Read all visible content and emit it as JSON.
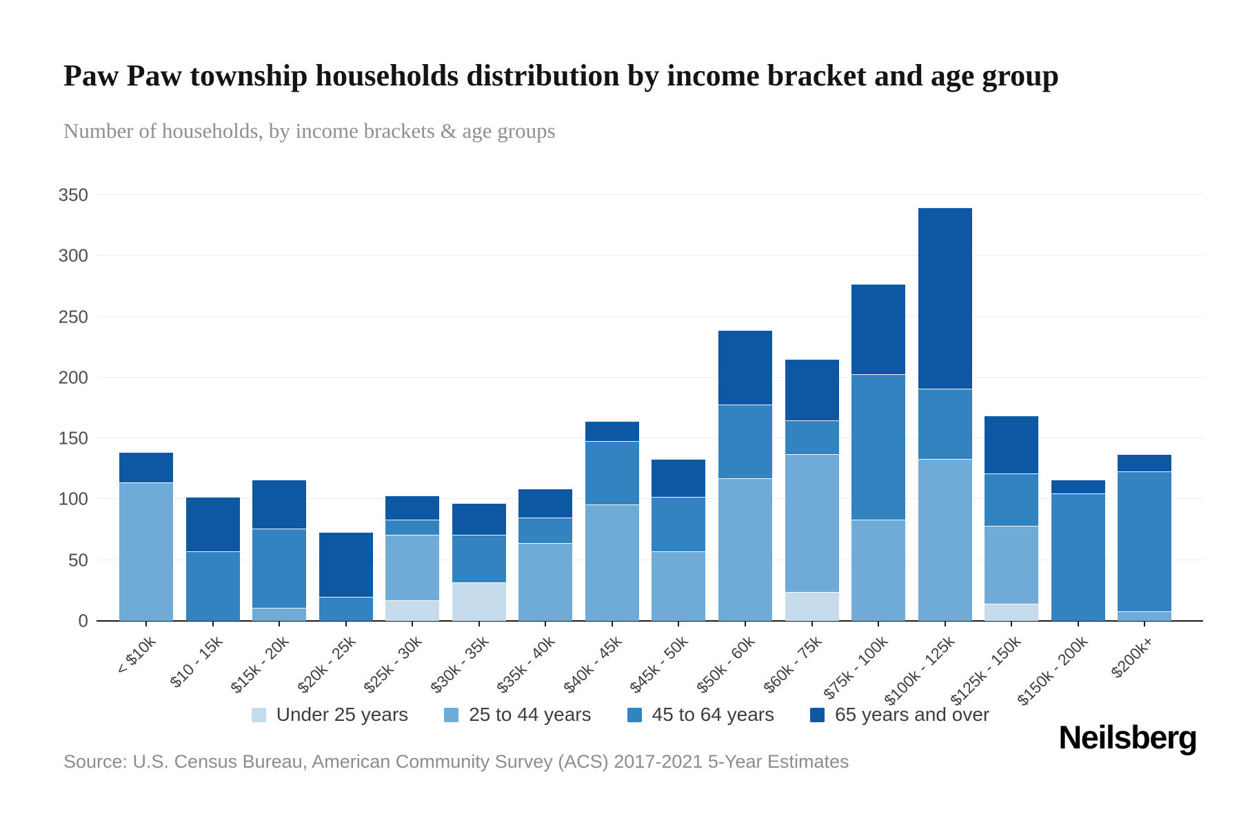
{
  "header": {
    "title": "Paw Paw township households distribution by income bracket and age group",
    "subtitle": "Number of households, by income brackets & age groups"
  },
  "footer": {
    "source": "Source: U.S. Census Bureau, American Community Survey (ACS) 2017-2021 5-Year Estimates",
    "logo": "Neilsberg"
  },
  "colors": {
    "under_25": "#c6dbeb",
    "age_25_44": "#6fabd6",
    "age_45_64": "#3383c0",
    "age_65_over": "#0e58a3",
    "gridline": "#ededed",
    "axis": "#1a1a1a"
  },
  "chart_data": {
    "type": "bar",
    "stacked": true,
    "title": "Paw Paw township households distribution by income bracket and age group",
    "subtitle": "Number of households, by income brackets & age groups",
    "xlabel": "",
    "ylabel": "",
    "ylim": [
      0,
      350
    ],
    "ytick_step": 50,
    "yticks": [
      0,
      50,
      100,
      150,
      200,
      250,
      300,
      350
    ],
    "grid": true,
    "legend_position": "bottom",
    "categories": [
      "< $10k",
      "$10 - 15k",
      "$15k - 20k",
      "$20k - 25k",
      "$25k - 30k",
      "$30k - 35k",
      "$35k - 40k",
      "$40k - 45k",
      "$45k - 50k",
      "$50k - 60k",
      "$60k - 75k",
      "$75k - 100k",
      "$100k - 125k",
      "$125k - 150k",
      "$150k - 200k",
      "$200k+"
    ],
    "series": [
      {
        "name": "Under 25 years",
        "color": "#c6dbeb",
        "values": [
          0,
          0,
          0,
          0,
          17,
          32,
          0,
          0,
          0,
          0,
          24,
          0,
          0,
          14,
          0,
          0
        ]
      },
      {
        "name": "25 to 44 years",
        "color": "#6fabd6",
        "values": [
          114,
          0,
          11,
          0,
          54,
          0,
          64,
          96,
          57,
          117,
          113,
          83,
          133,
          64,
          0,
          8
        ]
      },
      {
        "name": "45 to 64 years",
        "color": "#3383c0",
        "values": [
          0,
          57,
          65,
          20,
          12,
          39,
          21,
          52,
          45,
          61,
          28,
          120,
          58,
          43,
          105,
          115
        ]
      },
      {
        "name": "65 years and over",
        "color": "#0e58a3",
        "values": [
          25,
          45,
          40,
          53,
          20,
          26,
          24,
          16,
          31,
          61,
          50,
          74,
          149,
          48,
          11,
          14
        ]
      }
    ],
    "totals": [
      139,
      102,
      116,
      73,
      103,
      97,
      109,
      164,
      133,
      239,
      215,
      277,
      340,
      169,
      116,
      137
    ]
  }
}
